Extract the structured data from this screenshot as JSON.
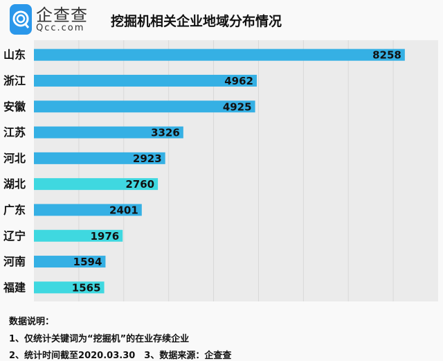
{
  "logo": {
    "name": "企查查",
    "domain": "Qcc.com"
  },
  "chart_data": {
    "type": "bar",
    "orientation": "horizontal",
    "title": "挖掘机相关企业地域分布情况",
    "categories": [
      "山东",
      "浙江",
      "安徽",
      "江苏",
      "河北",
      "湖北",
      "广东",
      "辽宁",
      "河南",
      "福建"
    ],
    "values": [
      8258,
      4962,
      4925,
      3326,
      2923,
      2760,
      2401,
      1976,
      1594,
      1565
    ],
    "colors": [
      "#35b0e4",
      "#35b0e4",
      "#35b0e4",
      "#35b0e4",
      "#35b0e4",
      "#3fd8e0",
      "#35b0e4",
      "#3fd8e0",
      "#35b0e4",
      "#3fd8e0"
    ],
    "xlim": [
      0,
      9000
    ],
    "grid": true,
    "xtick_step": 1000
  },
  "notes": {
    "heading": "数据说明：",
    "line1": "1、仅统计关键词为“挖掘机”的在业存续企业",
    "line2": "2、统计时间截至2020.03.30　3、数据来源：企查查"
  }
}
